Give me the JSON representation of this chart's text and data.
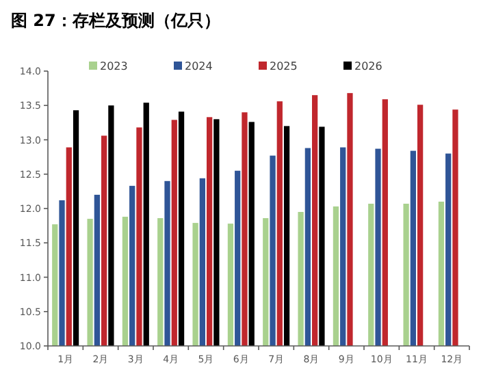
{
  "chart_data": {
    "type": "bar",
    "title": "图 27：存栏及预测（亿只）",
    "categories": [
      "1月",
      "2月",
      "3月",
      "4月",
      "5月",
      "6月",
      "7月",
      "8月",
      "9月",
      "10月",
      "11月",
      "12月"
    ],
    "series": [
      {
        "name": "2023",
        "color": "#a9d18e",
        "values": [
          11.77,
          11.85,
          11.88,
          11.86,
          11.79,
          11.78,
          11.86,
          11.95,
          12.03,
          12.07,
          12.07,
          12.1
        ]
      },
      {
        "name": "2024",
        "color": "#2f5597",
        "values": [
          12.12,
          12.2,
          12.33,
          12.4,
          12.44,
          12.55,
          12.77,
          12.88,
          12.89,
          12.87,
          12.84,
          12.8
        ]
      },
      {
        "name": "2025",
        "color": "#c0272d",
        "values": [
          12.89,
          13.06,
          13.18,
          13.29,
          13.33,
          13.4,
          13.56,
          13.65,
          13.68,
          13.59,
          13.51,
          13.44
        ]
      },
      {
        "name": "2026",
        "color": "#000000",
        "values": [
          13.43,
          13.5,
          13.54,
          13.41,
          13.3,
          13.26,
          13.2,
          13.19,
          null,
          null,
          null,
          null
        ]
      }
    ],
    "ylim": [
      10.0,
      14.0
    ],
    "yticks": [
      {
        "value": 10,
        "label": "10.0"
      },
      {
        "value": 10.5,
        "label": "10.5"
      },
      {
        "value": 11,
        "label": "11.0"
      },
      {
        "value": 11.5,
        "label": "11.5"
      },
      {
        "value": 12,
        "label": "12.0"
      },
      {
        "value": 12.5,
        "label": "12.5"
      },
      {
        "value": 13,
        "label": "13.0"
      },
      {
        "value": 13.5,
        "label": "13.5"
      },
      {
        "value": 14,
        "label": "14.0"
      }
    ],
    "legend": "top"
  }
}
